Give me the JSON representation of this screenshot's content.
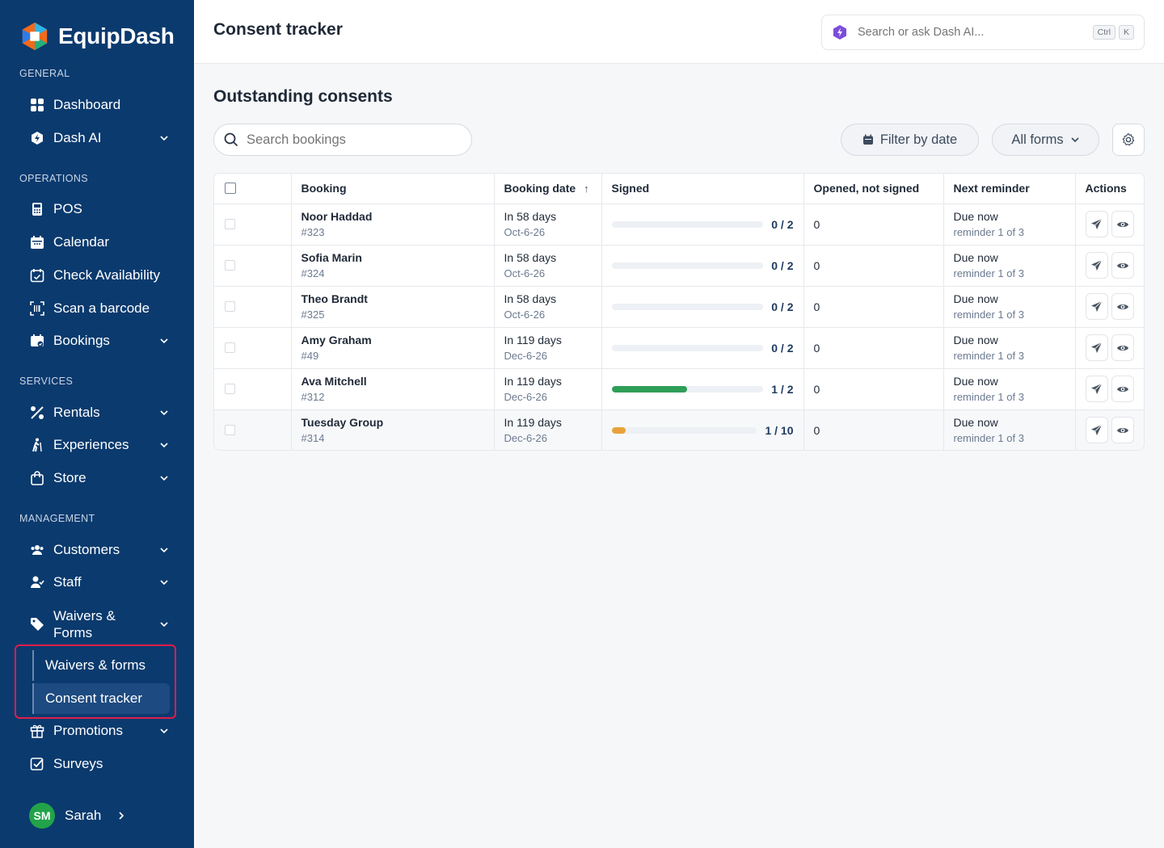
{
  "app": {
    "name": "EquipDash"
  },
  "sidebar": {
    "sections": {
      "general": "GENERAL",
      "operations": "OPERATIONS",
      "services": "SERVICES",
      "management": "MANAGEMENT"
    },
    "items": {
      "dashboard": "Dashboard",
      "dash_ai": "Dash AI",
      "pos": "POS",
      "calendar": "Calendar",
      "check_availability": "Check Availability",
      "scan_barcode": "Scan a barcode",
      "bookings": "Bookings",
      "rentals": "Rentals",
      "experiences": "Experiences",
      "store": "Store",
      "customers": "Customers",
      "staff": "Staff",
      "waivers_line1": "Waivers &",
      "waivers_line2": "Forms",
      "waivers_forms_sub": "Waivers & forms",
      "consent_tracker_sub": "Consent tracker",
      "promotions": "Promotions",
      "surveys": "Surveys"
    },
    "user": {
      "initials": "SM",
      "name": "Sarah"
    }
  },
  "header": {
    "title": "Consent tracker",
    "search_placeholder": "Search or ask Dash AI...",
    "kbd1": "Ctrl",
    "kbd2": "K"
  },
  "main": {
    "section_title": "Outstanding consents",
    "search_placeholder": "Search bookings",
    "filter_date": "Filter by date",
    "forms_select": "All forms"
  },
  "table": {
    "columns": [
      "Booking",
      "Booking date",
      "Signed",
      "Opened, not signed",
      "Next reminder",
      "Actions"
    ],
    "sort_indicator": "↑",
    "rows": [
      {
        "name": "Noor Haddad",
        "id": "#323",
        "date_rel": "In 58 days",
        "date": "Oct-6-26",
        "signed": "0 / 2",
        "signed_frac": 0,
        "opened": "0",
        "reminder": "Due now",
        "reminder_sub": "reminder 1 of 3"
      },
      {
        "name": "Sofia Marin",
        "id": "#324",
        "date_rel": "In 58 days",
        "date": "Oct-6-26",
        "signed": "0 / 2",
        "signed_frac": 0,
        "opened": "0",
        "reminder": "Due now",
        "reminder_sub": "reminder 1 of 3"
      },
      {
        "name": "Theo Brandt",
        "id": "#325",
        "date_rel": "In 58 days",
        "date": "Oct-6-26",
        "signed": "0 / 2",
        "signed_frac": 0,
        "opened": "0",
        "reminder": "Due now",
        "reminder_sub": "reminder 1 of 3"
      },
      {
        "name": "Amy Graham",
        "id": "#49",
        "date_rel": "In 119 days",
        "date": "Dec-6-26",
        "signed": "0 / 2",
        "signed_frac": 0,
        "opened": "0",
        "reminder": "Due now",
        "reminder_sub": "reminder 1 of 3"
      },
      {
        "name": "Ava Mitchell",
        "id": "#312",
        "date_rel": "In 119 days",
        "date": "Dec-6-26",
        "signed": "1 / 2",
        "signed_frac": 0.5,
        "opened": "0",
        "reminder": "Due now",
        "reminder_sub": "reminder 1 of 3"
      },
      {
        "name": "Tuesday Group",
        "id": "#314",
        "date_rel": "In 119 days",
        "date": "Dec-6-26",
        "signed": "1 / 10",
        "signed_frac": 0.1,
        "opened": "0",
        "reminder": "Due now",
        "reminder_sub": "reminder 1 of 3"
      }
    ]
  },
  "colors": {
    "sidebar_bg": "#0b3a6e",
    "progress_full": "#2e9e57",
    "progress_low": "#e8a23a",
    "highlight": "#e11d48"
  }
}
